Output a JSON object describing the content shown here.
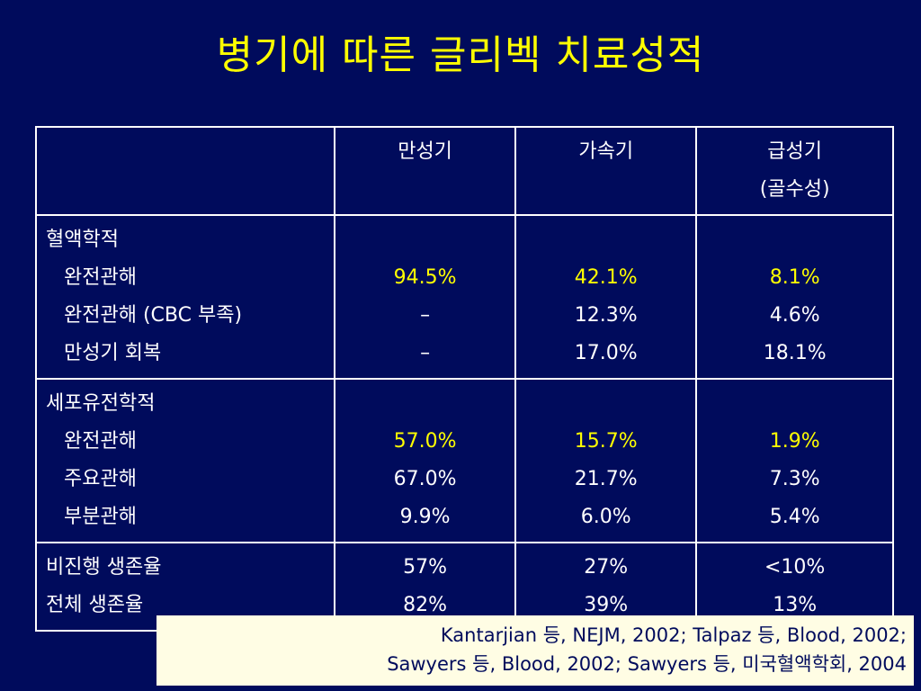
{
  "title": "병기에 따른 글리벡 치료성적",
  "table": {
    "header": {
      "c1": "만성기",
      "c2": "가속기",
      "c3a": "급성기",
      "c3b": "(골수성)"
    },
    "hematologic": {
      "heading": "혈액학적",
      "rows": [
        {
          "label": "완전관해",
          "values": [
            "94.5%",
            "42.1%",
            "8.1%"
          ]
        },
        {
          "label": "완전관해 (CBC 부족)",
          "values": [
            "–",
            "12.3%",
            "4.6%"
          ]
        },
        {
          "label": "만성기 회복",
          "values": [
            "–",
            "17.0%",
            "18.1%"
          ]
        }
      ]
    },
    "cytogenetic": {
      "heading": "세포유전학적",
      "rows": [
        {
          "label": "완전관해",
          "values": [
            "57.0%",
            "15.7%",
            "1.9%"
          ]
        },
        {
          "label": "주요관해",
          "values": [
            "67.0%",
            "21.7%",
            "7.3%"
          ]
        },
        {
          "label": "부분관해",
          "values": [
            "9.9%",
            "6.0%",
            "5.4%"
          ]
        }
      ]
    },
    "survival": {
      "rows": [
        {
          "label": "비진행 생존율",
          "values": [
            "57%",
            "27%",
            "<10%"
          ]
        },
        {
          "label": "전체 생존율",
          "values": [
            "82%",
            "39%",
            "13%"
          ]
        }
      ]
    }
  },
  "citation": {
    "line1": "Kantarjian 등, NEJM, 2002; Talpaz 등, Blood, 2002;",
    "line2": "Sawyers 등, Blood, 2002; Sawyers 등, 미국혈액학회, 2004"
  },
  "colors": {
    "background": "#000b5c",
    "title": "#ffff00",
    "highlight": "#ffff00",
    "text": "#ffffff",
    "citation_bg": "#fffde4"
  }
}
